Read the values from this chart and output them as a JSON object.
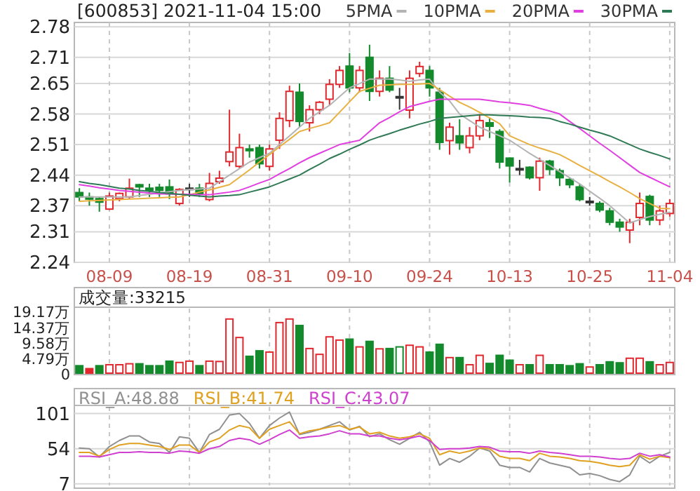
{
  "chart_data": [
    {
      "type": "candlestick",
      "title": "[600853] 2021-11-04 15:00",
      "categories": [
        null,
        null,
        null,
        "08-09",
        null,
        null,
        null,
        null,
        null,
        null,
        null,
        "08-19",
        null,
        null,
        null,
        null,
        null,
        null,
        null,
        "08-31",
        null,
        null,
        null,
        null,
        null,
        null,
        null,
        "09-10",
        null,
        null,
        null,
        null,
        null,
        null,
        null,
        "09-24",
        null,
        null,
        null,
        null,
        null,
        null,
        null,
        "10-13",
        null,
        null,
        null,
        null,
        null,
        null,
        null,
        "10-25",
        null,
        null,
        null,
        null,
        null,
        null,
        null,
        "11-04"
      ],
      "ohlc": [
        [
          2.4,
          2.41,
          2.38,
          2.39
        ],
        [
          2.39,
          2.4,
          2.37,
          2.385
        ],
        [
          2.386,
          2.39,
          2.356,
          2.378
        ],
        [
          2.362,
          2.4,
          2.36,
          2.392
        ],
        [
          2.386,
          2.4,
          2.38,
          2.398
        ],
        [
          2.39,
          2.432,
          2.385,
          2.41
        ],
        [
          2.418,
          2.42,
          2.39,
          2.413
        ],
        [
          2.41,
          2.42,
          2.39,
          2.405
        ],
        [
          2.412,
          2.42,
          2.39,
          2.405
        ],
        [
          2.413,
          2.43,
          2.385,
          2.397
        ],
        [
          2.375,
          2.41,
          2.37,
          2.407
        ],
        [
          2.41,
          2.42,
          2.39,
          2.41
        ],
        [
          2.41,
          2.42,
          2.39,
          2.397
        ],
        [
          2.384,
          2.445,
          2.38,
          2.421
        ],
        [
          2.425,
          2.45,
          2.42,
          2.433
        ],
        [
          2.471,
          2.59,
          2.46,
          2.493
        ],
        [
          2.46,
          2.535,
          2.455,
          2.503
        ],
        [
          2.5,
          2.51,
          2.48,
          2.496
        ],
        [
          2.503,
          2.51,
          2.455,
          2.466
        ],
        [
          2.46,
          2.51,
          2.45,
          2.5
        ],
        [
          2.52,
          2.584,
          2.5,
          2.57
        ],
        [
          2.565,
          2.645,
          2.55,
          2.632
        ],
        [
          2.63,
          2.65,
          2.55,
          2.563
        ],
        [
          2.56,
          2.6,
          2.54,
          2.59
        ],
        [
          2.59,
          2.61,
          2.58,
          2.607
        ],
        [
          2.614,
          2.66,
          2.6,
          2.648
        ],
        [
          2.648,
          2.69,
          2.64,
          2.68
        ],
        [
          2.69,
          2.72,
          2.63,
          2.64
        ],
        [
          2.64,
          2.69,
          2.63,
          2.68
        ],
        [
          2.71,
          2.739,
          2.61,
          2.632
        ],
        [
          2.632,
          2.68,
          2.62,
          2.662
        ],
        [
          2.662,
          2.69,
          2.63,
          2.635
        ],
        [
          2.62,
          2.64,
          2.59,
          2.62
        ],
        [
          2.589,
          2.68,
          2.57,
          2.662
        ],
        [
          2.673,
          2.7,
          2.665,
          2.689
        ],
        [
          2.68,
          2.69,
          2.62,
          2.64
        ],
        [
          2.63,
          2.64,
          2.498,
          2.515
        ],
        [
          2.519,
          2.56,
          2.487,
          2.55
        ],
        [
          2.53,
          2.568,
          2.498,
          2.514
        ],
        [
          2.503,
          2.55,
          2.49,
          2.53
        ],
        [
          2.53,
          2.58,
          2.52,
          2.565
        ],
        [
          2.56,
          2.57,
          2.525,
          2.552
        ],
        [
          2.54,
          2.545,
          2.455,
          2.47
        ],
        [
          2.479,
          2.48,
          2.423,
          2.461
        ],
        [
          2.455,
          2.475,
          2.44,
          2.455
        ],
        [
          2.458,
          2.46,
          2.43,
          2.434
        ],
        [
          2.434,
          2.48,
          2.404,
          2.472
        ],
        [
          2.472,
          2.475,
          2.44,
          2.453
        ],
        [
          2.45,
          2.455,
          2.415,
          2.434
        ],
        [
          2.43,
          2.435,
          2.41,
          2.418
        ],
        [
          2.413,
          2.42,
          2.38,
          2.384
        ],
        [
          2.38,
          2.39,
          2.37,
          2.38
        ],
        [
          2.375,
          2.38,
          2.355,
          2.36
        ],
        [
          2.358,
          2.365,
          2.325,
          2.332
        ],
        [
          2.332,
          2.34,
          2.31,
          2.321
        ],
        [
          2.314,
          2.34,
          2.284,
          2.332
        ],
        [
          2.343,
          2.4,
          2.325,
          2.375
        ],
        [
          2.391,
          2.395,
          2.325,
          2.337
        ],
        [
          2.337,
          2.37,
          2.325,
          2.358
        ],
        [
          2.352,
          2.385,
          2.345,
          2.375
        ]
      ],
      "colors": [
        "#138a2b",
        "#138a2b",
        "#138a2b",
        "#e0282e",
        "#e0282e",
        "#e0282e",
        "#138a2b",
        "#138a2b",
        "#138a2b",
        "#138a2b",
        "#e0282e",
        "#333333",
        "#138a2b",
        "#e0282e",
        "#e0282e",
        "#e0282e",
        "#e0282e",
        "#138a2b",
        "#138a2b",
        "#e0282e",
        "#e0282e",
        "#e0282e",
        "#138a2b",
        "#e0282e",
        "#e0282e",
        "#e0282e",
        "#e0282e",
        "#138a2b",
        "#e0282e",
        "#138a2b",
        "#e0282e",
        "#138a2b",
        "#333333",
        "#e0282e",
        "#e0282e",
        "#138a2b",
        "#138a2b",
        "#e0282e",
        "#138a2b",
        "#e0282e",
        "#e0282e",
        "#138a2b",
        "#138a2b",
        "#138a2b",
        "#333333",
        "#138a2b",
        "#e0282e",
        "#138a2b",
        "#138a2b",
        "#138a2b",
        "#138a2b",
        "#333333",
        "#138a2b",
        "#138a2b",
        "#138a2b",
        "#e0282e",
        "#e0282e",
        "#138a2b",
        "#e0282e",
        "#e0282e"
      ],
      "series": [
        {
          "name": "5PMA",
          "type": "line",
          "color": "#b4b4b4",
          "values": [
            2.39,
            2.39,
            2.39,
            2.39,
            2.39,
            2.39,
            2.393,
            2.396,
            2.399,
            2.402,
            2.405,
            2.407,
            2.408,
            2.41,
            2.425,
            2.44,
            2.455,
            2.47,
            2.48,
            2.49,
            2.51,
            2.53,
            2.55,
            2.57,
            2.585,
            2.6,
            2.62,
            2.64,
            2.65,
            2.66,
            2.66,
            2.66,
            2.658,
            2.655,
            2.658,
            2.66,
            2.63,
            2.61,
            2.58,
            2.565,
            2.55,
            2.54,
            2.53,
            2.52,
            2.505,
            2.49,
            2.476,
            2.462,
            2.448,
            2.434,
            2.42,
            2.403,
            2.387,
            2.37,
            2.35,
            2.33,
            2.338,
            2.345,
            2.35,
            2.355
          ]
        },
        {
          "name": "10PMA",
          "type": "line",
          "color": "#e8b040",
          "values": [
            2.38,
            2.381,
            2.382,
            2.383,
            2.384,
            2.385,
            2.386,
            2.387,
            2.388,
            2.389,
            2.39,
            2.395,
            2.401,
            2.406,
            2.412,
            2.418,
            2.435,
            2.452,
            2.47,
            2.487,
            2.505,
            2.522,
            2.54,
            2.547,
            2.553,
            2.56,
            2.584,
            2.608,
            2.632,
            2.639,
            2.646,
            2.647,
            2.648,
            2.648,
            2.649,
            2.65,
            2.636,
            2.621,
            2.607,
            2.596,
            2.584,
            2.571,
            2.558,
            2.53,
            2.52,
            2.51,
            2.502,
            2.495,
            2.487,
            2.475,
            2.462,
            2.45,
            2.438,
            2.425,
            2.413,
            2.4,
            2.386,
            2.375,
            2.364,
            2.363
          ]
        },
        {
          "name": "20PMA",
          "type": "line",
          "color": "#e040e0",
          "values": [
            2.418,
            2.415,
            2.411,
            2.408,
            2.405,
            2.403,
            2.401,
            2.399,
            2.397,
            2.397,
            2.396,
            2.396,
            2.395,
            2.395,
            2.398,
            2.401,
            2.405,
            2.413,
            2.422,
            2.43,
            2.443,
            2.455,
            2.468,
            2.48,
            2.49,
            2.5,
            2.51,
            2.515,
            2.52,
            2.54,
            2.56,
            2.572,
            2.585,
            2.597,
            2.603,
            2.609,
            2.614,
            2.614,
            2.614,
            2.614,
            2.614,
            2.611,
            2.608,
            2.606,
            2.603,
            2.6,
            2.593,
            2.587,
            2.58,
            2.563,
            2.547,
            2.53,
            2.513,
            2.497,
            2.48,
            2.463,
            2.446,
            2.435,
            2.424,
            2.413
          ]
        },
        {
          "name": "30PMA",
          "type": "line",
          "color": "#2f7a55",
          "values": [
            2.425,
            2.421,
            2.418,
            2.414,
            2.41,
            2.408,
            2.405,
            2.403,
            2.4,
            2.398,
            2.396,
            2.394,
            2.392,
            2.39,
            2.392,
            2.393,
            2.395,
            2.401,
            2.407,
            2.413,
            2.422,
            2.431,
            2.44,
            2.453,
            2.465,
            2.478,
            2.488,
            2.499,
            2.509,
            2.52,
            2.528,
            2.535,
            2.543,
            2.55,
            2.557,
            2.563,
            2.57,
            2.572,
            2.574,
            2.576,
            2.578,
            2.578,
            2.577,
            2.576,
            2.575,
            2.573,
            2.572,
            2.57,
            2.563,
            2.557,
            2.55,
            2.543,
            2.537,
            2.53,
            2.52,
            2.51,
            2.5,
            2.492,
            2.485,
            2.477
          ]
        }
      ],
      "ylim": [
        2.24,
        2.79
      ],
      "yticks": [
        2.24,
        2.31,
        2.37,
        2.44,
        2.51,
        2.58,
        2.65,
        2.71,
        2.78
      ],
      "grid": true,
      "legend": "top right"
    },
    {
      "type": "bar",
      "categories": [
        null,
        null,
        null,
        null,
        null,
        null,
        null,
        null,
        null,
        null,
        null,
        null,
        null,
        null,
        null,
        null,
        null,
        null,
        null,
        null,
        null,
        null,
        null,
        null,
        null,
        null,
        null,
        null,
        null,
        null,
        null,
        null,
        null,
        null,
        null,
        null,
        null,
        null,
        null,
        null,
        null,
        null,
        null,
        null,
        null,
        null,
        null,
        null,
        null,
        null,
        null,
        null,
        null,
        null,
        null,
        null,
        null,
        null,
        null,
        null
      ],
      "values": [
        2.3,
        1.4,
        2.3,
        2.6,
        2.6,
        2.9,
        2.9,
        2.3,
        2.3,
        3.7,
        3.3,
        3.7,
        2.3,
        3.7,
        3.6,
        16.7,
        11.0,
        5.2,
        6.9,
        6.5,
        15.6,
        16.7,
        14.7,
        7.6,
        5.8,
        11.2,
        10.2,
        10.5,
        8.1,
        9.8,
        7.5,
        7.6,
        8.1,
        8.6,
        8.1,
        6.5,
        8.9,
        4.8,
        4.8,
        2.6,
        5.5,
        3.0,
        5.5,
        4.0,
        2.6,
        2.6,
        5.5,
        2.6,
        2.6,
        2.3,
        2.9,
        1.9,
        2.6,
        3.5,
        3.2,
        4.6,
        4.6,
        3.5,
        2.6,
        3.3
      ],
      "colors": [
        "#138a2b",
        "#e0282e",
        "#138a2b",
        "#e0282e",
        "#e0282e",
        "#e0282e",
        "#138a2b",
        "#138a2b",
        "#138a2b",
        "#138a2b",
        "#e0282e",
        "#e0282e",
        "#138a2b",
        "#e0282e",
        "#e0282e",
        "#e0282e",
        "#e0282e",
        "#138a2b",
        "#138a2b",
        "#e0282e",
        "#e0282e",
        "#e0282e",
        "#138a2b",
        "#e0282e",
        "#e0282e",
        "#e0282e",
        "#e0282e",
        "#138a2b",
        "#e0282e",
        "#138a2b",
        "#e0282e",
        "#138a2b",
        "#138a2b",
        "#e0282e",
        "#e0282e",
        "#138a2b",
        "#138a2b",
        "#e0282e",
        "#138a2b",
        "#e0282e",
        "#e0282e",
        "#138a2b",
        "#138a2b",
        "#138a2b",
        "#e0282e",
        "#138a2b",
        "#e0282e",
        "#138a2b",
        "#138a2b",
        "#138a2b",
        "#138a2b",
        "#e0282e",
        "#138a2b",
        "#138a2b",
        "#138a2b",
        "#e0282e",
        "#e0282e",
        "#138a2b",
        "#e0282e",
        "#e0282e"
      ],
      "ylim": [
        0,
        19.9
      ],
      "yticks": [
        0,
        {
          "value": 4.79,
          "label": "4.79万"
        },
        {
          "value": 9.58,
          "label": "9.58万"
        },
        {
          "value": 14.37,
          "label": "14.37万"
        },
        {
          "value": 19.17,
          "label": "19.17万"
        }
      ],
      "annotations": [
        "成交量:33215"
      ],
      "tick_labels": "y",
      "grid": "x"
    },
    {
      "type": "line",
      "categories": [
        null,
        null,
        null,
        null,
        null,
        null,
        null,
        null,
        null,
        null,
        null,
        null,
        null,
        null,
        null,
        null,
        null,
        null,
        null,
        null,
        null,
        null,
        null,
        null,
        null,
        null,
        null,
        null,
        null,
        null,
        null,
        null,
        null,
        null,
        null,
        null,
        null,
        null,
        null,
        null,
        null,
        null,
        null,
        null,
        null,
        null,
        null,
        null,
        null,
        null,
        null,
        null,
        null,
        null,
        null,
        null,
        null,
        null,
        null,
        null
      ],
      "series": [
        {
          "name": "RSI_A:48.88",
          "color": "#909090",
          "values": [
            55,
            54,
            43,
            57,
            65,
            71,
            71,
            63,
            61,
            49,
            70,
            68,
            49,
            73,
            80,
            99,
            101,
            88,
            68,
            85,
            95,
            103,
            73,
            76,
            80,
            85,
            90,
            79,
            84,
            70,
            74,
            66,
            60,
            68,
            76,
            63,
            32,
            41,
            36,
            44,
            55,
            51,
            32,
            29,
            29,
            23,
            41,
            35,
            32,
            29,
            19,
            21,
            18,
            13,
            10,
            19,
            44,
            35,
            44,
            49
          ]
        },
        {
          "name": "RSI_B:41.74",
          "color": "#e0a020",
          "values": [
            49,
            49,
            44,
            53,
            59,
            61,
            61,
            59,
            57,
            53,
            59,
            59,
            49,
            63,
            68,
            79,
            85,
            82,
            68,
            80,
            85,
            90,
            74,
            78,
            80,
            83,
            85,
            80,
            83,
            74,
            76,
            71,
            68,
            70,
            74,
            68,
            46,
            51,
            48,
            51,
            55,
            54,
            44,
            41,
            41,
            38,
            48,
            44,
            43,
            41,
            38,
            37,
            35,
            32,
            30,
            32,
            46,
            40,
            44,
            42
          ]
        },
        {
          "name": "RSI_C:43.07",
          "color": "#d040d0",
          "values": [
            44,
            44,
            43,
            46,
            49,
            49,
            50,
            49,
            49,
            48,
            51,
            50,
            48,
            54,
            57,
            65,
            68,
            66,
            60,
            66,
            73,
            79,
            68,
            70,
            71,
            74,
            78,
            74,
            74,
            71,
            71,
            68,
            66,
            68,
            71,
            65,
            53,
            54,
            54,
            55,
            57,
            56,
            51,
            50,
            50,
            48,
            51,
            49,
            48,
            46,
            44,
            44,
            43,
            41,
            40,
            41,
            48,
            44,
            46,
            43
          ]
        }
      ],
      "ylim": [
        5,
        110
      ],
      "yticks": [
        7,
        54,
        101
      ],
      "tick_labels": "y",
      "grid": true,
      "legend": "top left"
    }
  ]
}
